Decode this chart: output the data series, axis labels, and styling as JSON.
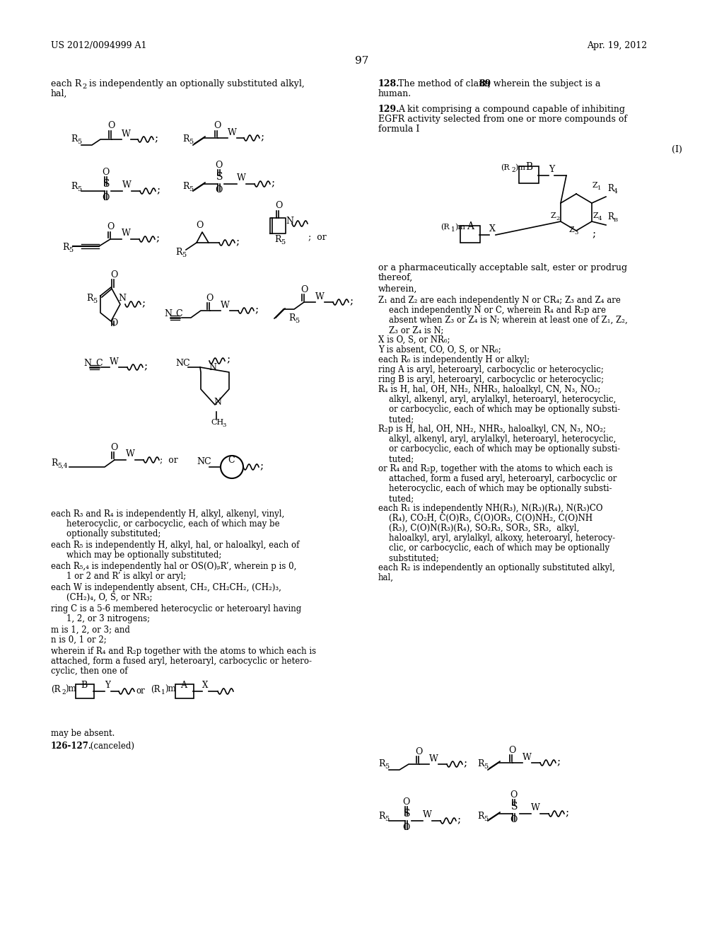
{
  "background_color": "#ffffff",
  "page_number": "97",
  "header_left": "US 2012/0094999 A1",
  "header_right": "Apr. 19, 2012",
  "fig_width": 10.24,
  "fig_height": 13.2
}
